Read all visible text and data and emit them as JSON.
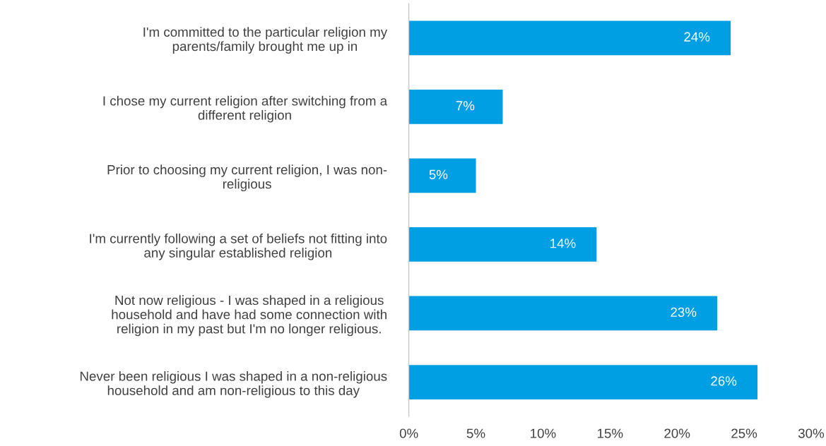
{
  "chart_data": {
    "type": "bar",
    "orientation": "horizontal",
    "categories": [
      "I'm committed to the particular religion my\nparents/family brought me up in",
      "I chose my current religion after switching from a\ndifferent religion",
      "Prior to choosing my current religion, I was non-\nreligious",
      "I'm currently following a set of beliefs not fitting into\nany singular established religion",
      "Not now religious - I was shaped in a religious\nhousehold and have had some connection with\nreligion in my past but I'm no longer religious.",
      "Never been religious I was shaped in a non-religious\nhousehold and am non-religious to this day"
    ],
    "values": [
      24,
      7,
      5,
      14,
      23,
      26
    ],
    "value_labels": [
      "24%",
      "7%",
      "5%",
      "14%",
      "23%",
      "26%"
    ],
    "color": "#009fe3",
    "xlim": [
      0,
      30
    ],
    "xticks": [
      {
        "value": 0,
        "label": "0%"
      },
      {
        "value": 5,
        "label": "5%"
      },
      {
        "value": 10,
        "label": "10%"
      },
      {
        "value": 15,
        "label": "15%"
      },
      {
        "value": 20,
        "label": "20%"
      },
      {
        "value": 25,
        "label": "25%"
      },
      {
        "value": 30,
        "label": "30%"
      }
    ],
    "grid": false,
    "legend": false
  }
}
